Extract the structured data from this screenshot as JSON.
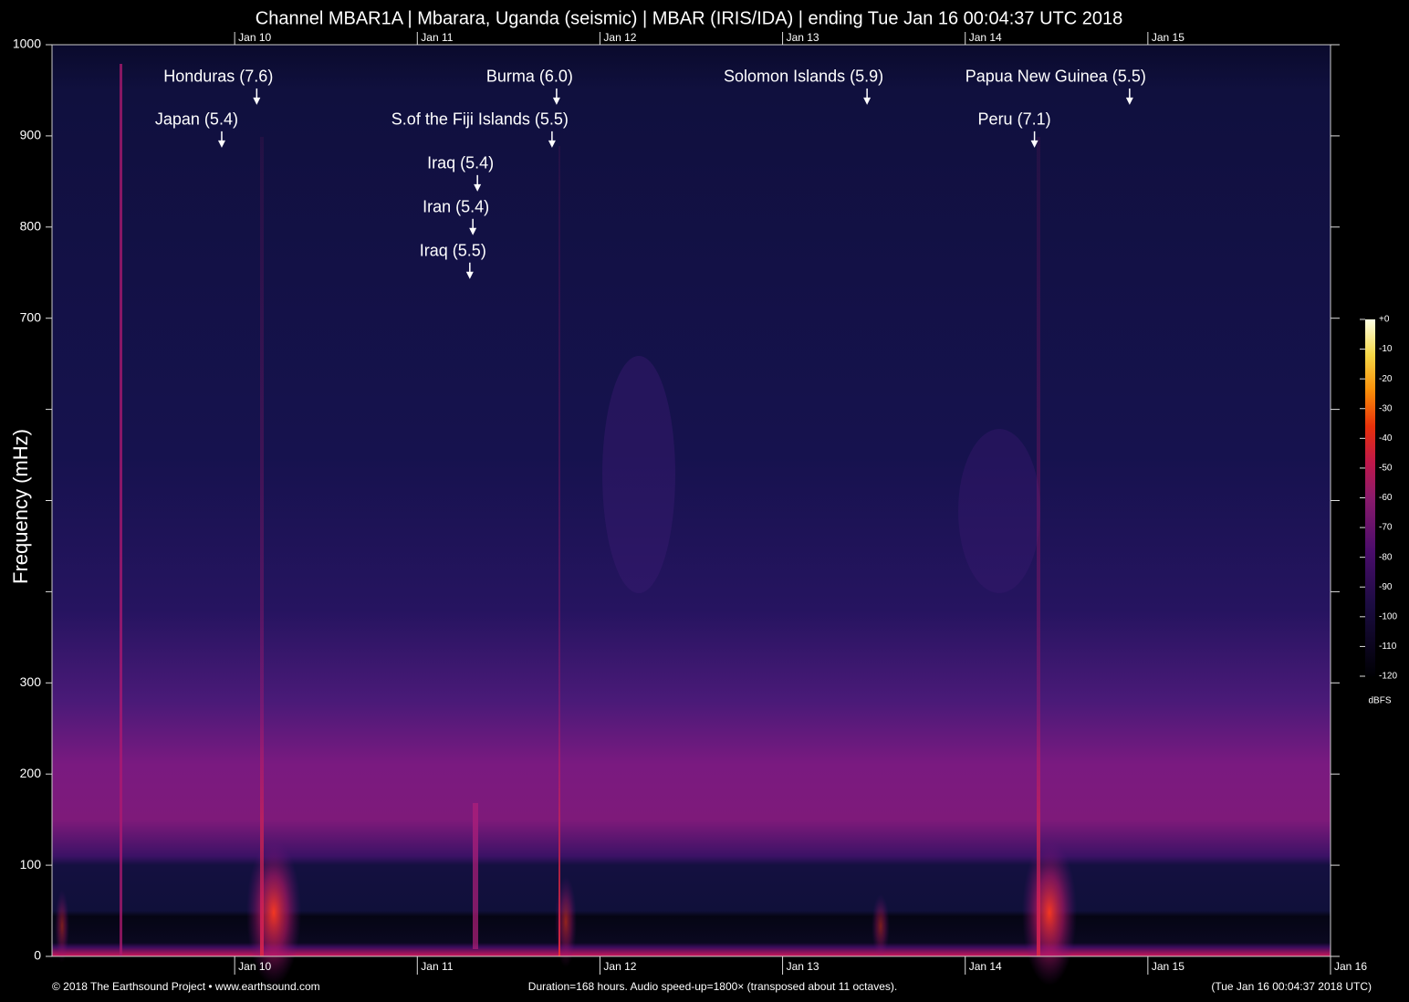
{
  "chart_data": {
    "type": "spectrogram",
    "title": "Channel MBAR1A | Mbarara, Uganda (seismic) | MBAR (IRIS/IDA) | ending Tue Jan 16 00:04:37 UTC 2018",
    "y_label": "Frequency (mHz)",
    "xlim": [
      0,
      168
    ],
    "xticks": [
      {
        "value": 24,
        "label": "Jan 10"
      },
      {
        "value": 48,
        "label": "Jan 11"
      },
      {
        "value": 72,
        "label": "Jan 12"
      },
      {
        "value": 96,
        "label": "Jan 13"
      },
      {
        "value": 120,
        "label": "Jan 14"
      },
      {
        "value": 144,
        "label": "Jan 15"
      },
      {
        "value": 168,
        "label": "Jan 16"
      }
    ],
    "ylim": [
      0,
      1000
    ],
    "yticks": [
      0,
      100,
      200,
      300,
      {
        "value": 400,
        "label": null
      },
      {
        "value": 500,
        "label": null
      },
      {
        "value": 600,
        "label": null
      },
      700,
      800,
      900,
      1000
    ],
    "annotations": [
      {
        "text": "Honduras (7.6)",
        "x": 26.9,
        "y": 934
      },
      {
        "text": "Japan (5.4)",
        "x": 22.3,
        "y": 887
      },
      {
        "text": "Burma (6.0)",
        "x": 66.3,
        "y": 934
      },
      {
        "text": "S.of the Fiji Islands (5.5)",
        "x": 65.7,
        "y": 887
      },
      {
        "text": "Iraq (5.4)",
        "x": 55.9,
        "y": 839
      },
      {
        "text": "Iran (5.4)",
        "x": 55.3,
        "y": 791
      },
      {
        "text": "Iraq (5.5)",
        "x": 54.9,
        "y": 743
      },
      {
        "text": "Solomon Islands (5.9)",
        "x": 107.1,
        "y": 934
      },
      {
        "text": "Papua New Guinea (5.5)",
        "x": 141.6,
        "y": 934
      },
      {
        "text": "Peru (7.1)",
        "x": 129.1,
        "y": 887
      }
    ],
    "colorbar": {
      "label": "dBFS",
      "lim": [
        -120,
        0
      ],
      "ticks": [
        {
          "value": 0,
          "label": "+0"
        },
        -10,
        -20,
        -30,
        -40,
        -50,
        -60,
        -70,
        -80,
        -90,
        -100,
        -110,
        -120
      ]
    },
    "footer_left": "© 2018 The Earthsound Project • www.earthsound.com",
    "footer_center": "Duration=168 hours. Audio speed-up=1800× (transposed about 11 octaves).",
    "footer_right": "(Tue Jan 16 00:04:37 2018 UTC)"
  }
}
